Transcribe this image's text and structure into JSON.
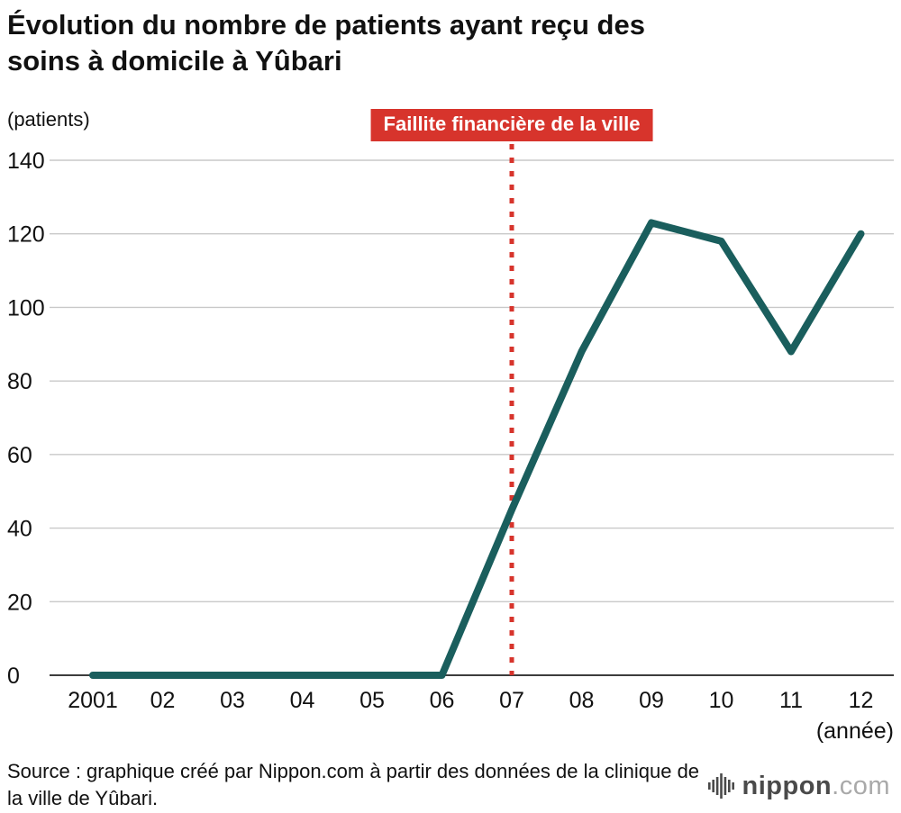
{
  "title": "Évolution du nombre de patients ayant reçu des soins à domicile à Yûbari",
  "y_unit_label": "(patients)",
  "x_unit_label": "(année)",
  "annotation": {
    "label": "Faillite financière de la ville",
    "x_category": "07"
  },
  "source": "Source : graphique créé par Nippon.com à partir des données de la clinique de la ville de Yûbari.",
  "logo": {
    "name": "nippon",
    "tld": ".com"
  },
  "colors": {
    "line": "#1a5e5d",
    "annotation_red": "#d7342c",
    "grid": "#c9c9c9",
    "axis": "#3d3d3d",
    "text": "#111111"
  },
  "chart_data": {
    "type": "line",
    "title": "Évolution du nombre de patients ayant reçu des soins à domicile à Yûbari",
    "categories": [
      "2001",
      "02",
      "03",
      "04",
      "05",
      "06",
      "07",
      "08",
      "09",
      "10",
      "11",
      "12"
    ],
    "values": [
      0,
      0,
      0,
      0,
      0,
      0,
      45,
      88,
      123,
      118,
      88,
      120
    ],
    "xlabel": "(année)",
    "ylabel": "(patients)",
    "ylim": [
      0,
      140
    ],
    "ytick_step": 20,
    "yticks": [
      0,
      20,
      40,
      60,
      80,
      100,
      120,
      140
    ],
    "grid": true,
    "legend": false,
    "annotation": {
      "label": "Faillite financière de la ville",
      "x": "07"
    }
  }
}
